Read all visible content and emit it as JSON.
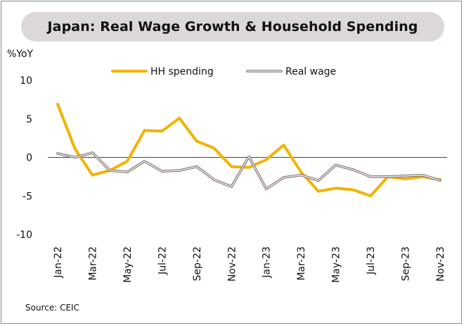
{
  "chart_data": {
    "type": "line",
    "title": "Japan: Real Wage Growth & Household Spending",
    "ylabel": "%YoY",
    "source": "Source: CEIC",
    "ylim": [
      -10,
      10
    ],
    "yticks": [
      10,
      5,
      0,
      -5,
      -10
    ],
    "x": [
      "Jan-22",
      "Feb-22",
      "Mar-22",
      "Apr-22",
      "May-22",
      "Jun-22",
      "Jul-22",
      "Aug-22",
      "Sep-22",
      "Oct-22",
      "Nov-22",
      "Dec-22",
      "Jan-23",
      "Feb-23",
      "Mar-23",
      "Apr-23",
      "May-23",
      "Jun-23",
      "Jul-23",
      "Aug-23",
      "Sep-23",
      "Oct-23",
      "Nov-23"
    ],
    "xtick_labels": [
      "Jan-22",
      "Mar-22",
      "May-22",
      "Jul-22",
      "Sep-22",
      "Nov-22",
      "Jan-23",
      "Mar-23",
      "May-23",
      "Jul-23",
      "Sep-23",
      "Nov-23"
    ],
    "legend_position": "top",
    "series": [
      {
        "name": "HH spending",
        "color": "#f2b300",
        "values": [
          6.9,
          1.1,
          -2.3,
          -1.7,
          -0.5,
          3.5,
          3.4,
          5.1,
          2.1,
          1.2,
          -1.2,
          -1.3,
          -0.3,
          1.6,
          -1.9,
          -4.4,
          -4.0,
          -4.2,
          -5.0,
          -2.5,
          -2.8,
          -2.5,
          -2.9
        ]
      },
      {
        "name": "Real wage",
        "color": "#ad9fa1",
        "values": [
          0.5,
          0.0,
          0.6,
          -1.7,
          -1.9,
          -0.5,
          -1.8,
          -1.7,
          -1.2,
          -2.9,
          -3.8,
          0.1,
          -4.1,
          -2.6,
          -2.3,
          -3.0,
          -1.0,
          -1.6,
          -2.5,
          -2.5,
          -2.4,
          -2.3,
          -3.0
        ]
      }
    ]
  }
}
